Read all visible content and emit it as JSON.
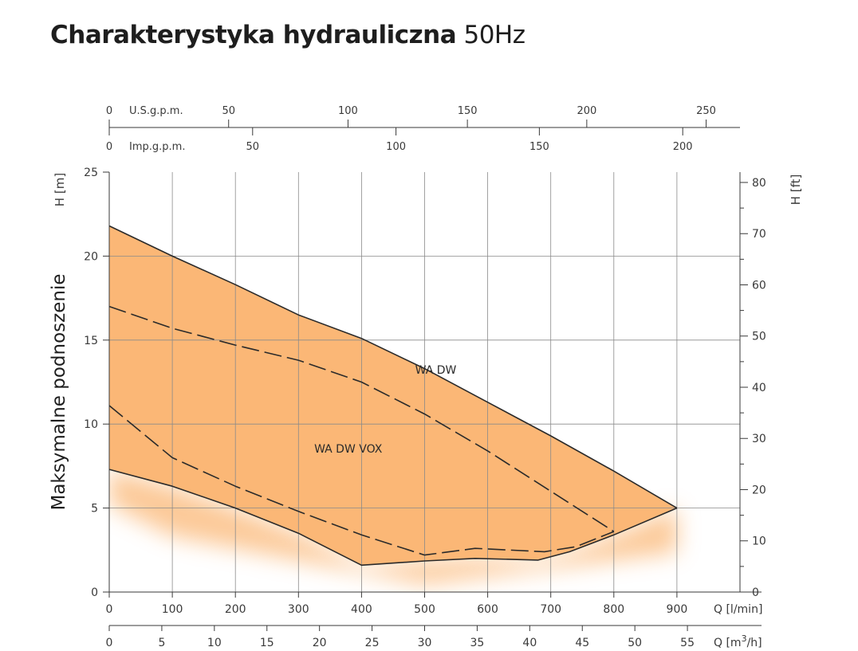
{
  "title": {
    "main": "Charakterystyka hydrauliczna",
    "suffix": "50Hz"
  },
  "chart_data": {
    "type": "area",
    "ylabel_side": "Maksymalne podnoszenie",
    "left_axis": {
      "label": "H [m]",
      "range": [
        0,
        25
      ],
      "ticks": [
        "0",
        "5",
        "10",
        "15",
        "20",
        "25"
      ]
    },
    "right_axis": {
      "label": "H [ft]",
      "range": [
        0,
        82.02
      ],
      "ticks": [
        "0",
        "10",
        "20",
        "30",
        "40",
        "50",
        "60",
        "70",
        "80"
      ]
    },
    "bottom_axis_lmin": {
      "label": "Q [l/min]",
      "range": [
        0,
        1000
      ],
      "ticks": [
        "0",
        "100",
        "200",
        "300",
        "400",
        "500",
        "600",
        "700",
        "800",
        "900"
      ]
    },
    "bottom_axis_m3h": {
      "label": "Q [m",
      "label_sup": "3",
      "label_end": "/h]",
      "ticks": [
        "0",
        "5",
        "10",
        "15",
        "20",
        "25",
        "30",
        "35",
        "40",
        "45",
        "50",
        "55"
      ]
    },
    "top_axis_usgpm": {
      "label": "U.S.g.p.m.",
      "ticks": [
        "0",
        "50",
        "100",
        "150",
        "200",
        "250"
      ]
    },
    "top_axis_impgpm": {
      "label": "Imp.g.p.m.",
      "ticks": [
        "0",
        "50",
        "100",
        "150",
        "200"
      ]
    },
    "fill_color": "#fbb776",
    "line_color": "#2a2a2a",
    "grid": true,
    "series": [
      {
        "name": "",
        "style": "solid",
        "role": "upper-envelope",
        "x": [
          0,
          100,
          200,
          300,
          400,
          500,
          600,
          700,
          800,
          900
        ],
        "y": [
          21.8,
          20.0,
          18.3,
          16.5,
          15.1,
          13.3,
          11.3,
          9.3,
          7.2,
          5.0
        ]
      },
      {
        "name": "",
        "style": "solid",
        "role": "lower-envelope",
        "x": [
          0,
          100,
          200,
          300,
          400,
          500,
          580,
          680,
          730,
          800,
          900
        ],
        "y": [
          7.3,
          6.3,
          5.0,
          3.5,
          1.6,
          1.85,
          2.0,
          1.9,
          2.4,
          3.4,
          5.0
        ]
      },
      {
        "name": "WA DW",
        "style": "dashed",
        "x": [
          0,
          100,
          200,
          300,
          400,
          500,
          600,
          700,
          800
        ],
        "y": [
          17.0,
          15.7,
          14.7,
          13.8,
          12.5,
          10.6,
          8.4,
          6.0,
          3.6
        ]
      },
      {
        "name": "WA DW VOX",
        "style": "dashed",
        "x": [
          0,
          100,
          200,
          300,
          400,
          500,
          580,
          690,
          740,
          800
        ],
        "y": [
          11.1,
          8.0,
          6.3,
          4.8,
          3.4,
          2.2,
          2.6,
          2.4,
          2.7,
          3.6
        ]
      }
    ],
    "series_label_positions": [
      {
        "name": "WA DW",
        "x": 485,
        "y": 13.0
      },
      {
        "name": "WA DW VOX",
        "x": 325,
        "y": 8.3
      }
    ]
  }
}
